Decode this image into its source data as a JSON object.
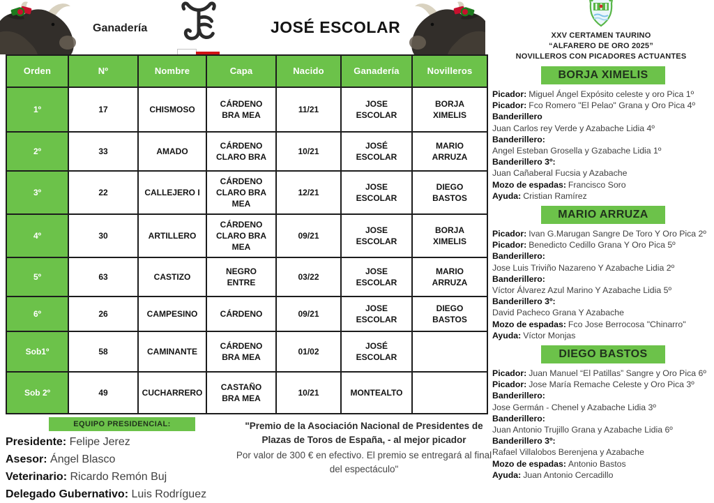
{
  "colors": {
    "accent_green": "#6cc24a",
    "divisa_red": "#cf1315"
  },
  "header": {
    "ganaderia_label": "Ganadería",
    "title": "JOSÉ ESCOLAR",
    "brand_icon": "cattle-brand-icon",
    "divisa": "white-red-pennant"
  },
  "table": {
    "columns": [
      "Orden",
      "Nº",
      "Nombre",
      "Capa",
      "Nacido",
      "Ganadería",
      "Novilleros"
    ],
    "rows": [
      [
        "1º",
        "17",
        "CHISMOSO",
        "CÁRDENO\nBRA MEA",
        "11/21",
        "JOSE\nESCOLAR",
        "BORJA\nXIMELIS"
      ],
      [
        "2º",
        "33",
        "AMADO",
        "CÁRDENO\nCLARO BRA",
        "10/21",
        "JOSÉ\nESCOLAR",
        "MARIO\nARRUZA"
      ],
      [
        "3º",
        "22",
        "CALLEJERO I",
        "CÁRDENO\nCLARO BRA\nMEA",
        "12/21",
        "JOSE\nESCOLAR",
        "DIEGO\nBASTOS"
      ],
      [
        "4º",
        "30",
        "ARTILLERO",
        "CÁRDENO\nCLARO BRA\nMEA",
        "09/21",
        "JOSE\nESCOLAR",
        "BORJA\nXIMELIS"
      ],
      [
        "5º",
        "63",
        "CASTIZO",
        "NEGRO\nENTRE",
        "03/22",
        "JOSE\nESCOLAR",
        "MARIO\nARRUZA"
      ],
      [
        "6º",
        "26",
        "CAMPESINO",
        "CÁRDENO",
        "09/21",
        "JOSE\nESCOLAR",
        "DIEGO\nBASTOS"
      ],
      [
        "Sob1º",
        "58",
        "CAMINANTE",
        "CÁRDENO\nBRA MEA",
        "01/02",
        "JOSÉ\nESCOLAR",
        ""
      ],
      [
        "Sob 2º",
        "49",
        "CUCHARRERO",
        "CASTAÑO\nBRA MEA",
        "10/21",
        "MONTEALTO",
        ""
      ]
    ]
  },
  "right_panel": {
    "crest_icon": "villaseca-coat-of-arms",
    "title1": "XXV CERTAMEN TAURINO",
    "title2": "“ALFARERO DE ORO 2025”",
    "title3": "NOVILLEROS CON PICADORES ACTUANTES",
    "sections": [
      {
        "name": "BORJA XIMELIS",
        "lines": [
          [
            "Picador:",
            "Miguel Ángel Expósito celeste y oro Pica 1º"
          ],
          [
            "Picador:",
            "Fco Romero \"El Pelao\" Grana y Oro Pica 4º"
          ],
          [
            "Banderillero",
            ""
          ],
          [
            "",
            "Juan Carlos rey  Verde y Azabache Lidia 4º"
          ],
          [
            "Banderillero:",
            ""
          ],
          [
            "",
            "Angel Esteban Grosella y Gzabache Lidia 1º"
          ],
          [
            "Banderillero 3º:",
            ""
          ],
          [
            "",
            "Juan Cañaberal Fucsia y Azabache"
          ],
          [
            "Mozo de espadas:",
            "Francisco Soro"
          ],
          [
            "Ayuda:",
            "Cristian Ramírez"
          ]
        ]
      },
      {
        "name": "MARIO ARRUZA",
        "lines": [
          [
            "Picador:",
            "Ivan G.Marugan Sangre De Toro Y Oro Pica 2º"
          ],
          [
            "Picador:",
            "Benedicto Cedillo Grana Y Oro Pica 5º"
          ],
          [
            "Banderillero:",
            ""
          ],
          [
            "",
            "Jose Luis Triviño Nazareno Y Azabache Lidia 2º"
          ],
          [
            "Banderillero:",
            ""
          ],
          [
            "",
            "Víctor Álvarez Azul Marino Y Azabache Lidia 5º"
          ],
          [
            "Banderillero 3º:",
            ""
          ],
          [
            "",
            "David Pacheco Grana Y Azabache"
          ],
          [
            "Mozo de espadas:",
            "Fco Jose Berrocosa \"Chinarro\""
          ],
          [
            "Ayuda:",
            "Víctor Monjas"
          ]
        ]
      },
      {
        "name": "DIEGO BASTOS",
        "lines": [
          [
            "Picador:",
            "Juan Manuel  “El Patillas” Sangre y Oro Pica 6º"
          ],
          [
            "Picador:",
            "Jose María Remache Celeste y Oro Pica 3º"
          ],
          [
            "Banderillero:",
            ""
          ],
          [
            "",
            "Jose Germán - Chenel y Azabache Lidia 3º"
          ],
          [
            "Banderillero:",
            ""
          ],
          [
            "",
            "Juan Antonio Trujillo Grana y Azabache Lidia 6º"
          ],
          [
            "Banderillero 3º:",
            ""
          ],
          [
            "",
            "Rafael Villalobos Berenjena y Azabache"
          ],
          [
            "Mozo de espadas:",
            "Antonio Bastos"
          ],
          [
            "Ayuda:",
            "Juan Antonio Cercadillo"
          ]
        ]
      }
    ]
  },
  "footer": {
    "equipo": {
      "title": "EQUIPO PRESIDENCIAL:",
      "lines": [
        [
          "Presidente:",
          "Felipe Jerez"
        ],
        [
          "Asesor:",
          "Ángel Blasco"
        ],
        [
          "Veterinario:",
          "Ricardo Remón Buj"
        ],
        [
          "Delegado Gubernativo:",
          "Luis Rodríguez"
        ]
      ]
    },
    "premio": {
      "bold": "\"Premio de la Asociación Nacional de Presidentes de Plazas de Toros de España, - al mejor picador",
      "regular": "Por valor de 300 € en efectivo. El premio se entregará al final del espectáculo\""
    }
  }
}
